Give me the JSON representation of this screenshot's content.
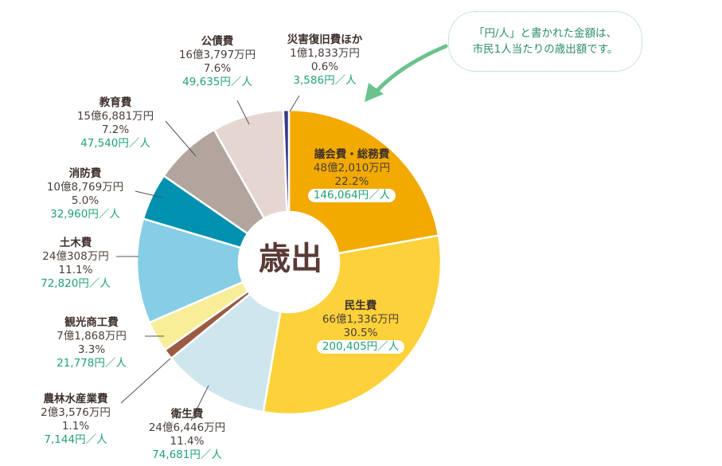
{
  "center_label": "歳出",
  "note": {
    "line1": "「円/人」と書かれた金額は、",
    "line2": "市民1人当たりの歳出額です。"
  },
  "colors": {
    "per_person_text": "#23a07a",
    "note_arrow": "#6cc28c",
    "leader_line": "#555555"
  },
  "chart_data": {
    "type": "pie",
    "title": "",
    "donut": true,
    "slices": [
      {
        "name": "議会費・総務費",
        "amount": "48億2,010万円",
        "percent": 22.2,
        "percent_text": "22.2%",
        "per_person": "146,064円／人",
        "color": "#f2a900"
      },
      {
        "name": "民生費",
        "amount": "66億1,336万円",
        "percent": 30.5,
        "percent_text": "30.5%",
        "per_person": "200,405円／人",
        "color": "#fcd13a"
      },
      {
        "name": "衛生費",
        "amount": "24億6,446万円",
        "percent": 11.4,
        "percent_text": "11.4%",
        "per_person": "74,681円／人",
        "color": "#cfe6ee"
      },
      {
        "name": "農林水産業費",
        "amount": "2億3,576万円",
        "percent": 1.1,
        "percent_text": "1.1%",
        "per_person": "7,144円／人",
        "color": "#9c5a43"
      },
      {
        "name": "観光商工費",
        "amount": "7億1,868万円",
        "percent": 3.3,
        "percent_text": "3.3%",
        "per_person": "21,778円／人",
        "color": "#f8ee97"
      },
      {
        "name": "土木費",
        "amount": "24億308万円",
        "percent": 11.1,
        "percent_text": "11.1%",
        "per_person": "72,820円／人",
        "color": "#86cde6"
      },
      {
        "name": "消防費",
        "amount": "10億8,769万円",
        "percent": 5.0,
        "percent_text": "5.0%",
        "per_person": "32,960円／人",
        "color": "#0090b0"
      },
      {
        "name": "教育費",
        "amount": "15億6,881万円",
        "percent": 7.2,
        "percent_text": "7.2%",
        "per_person": "47,540円／人",
        "color": "#b2a59d"
      },
      {
        "name": "公債費",
        "amount": "16億3,797万円",
        "percent": 7.6,
        "percent_text": "7.6%",
        "per_person": "49,635円／人",
        "color": "#e6d6d1"
      },
      {
        "name": "災害復旧費ほか",
        "amount": "1億1,833万円",
        "percent": 0.6,
        "percent_text": "0.6%",
        "per_person": "3,586円／人",
        "color": "#353a8c"
      }
    ]
  }
}
